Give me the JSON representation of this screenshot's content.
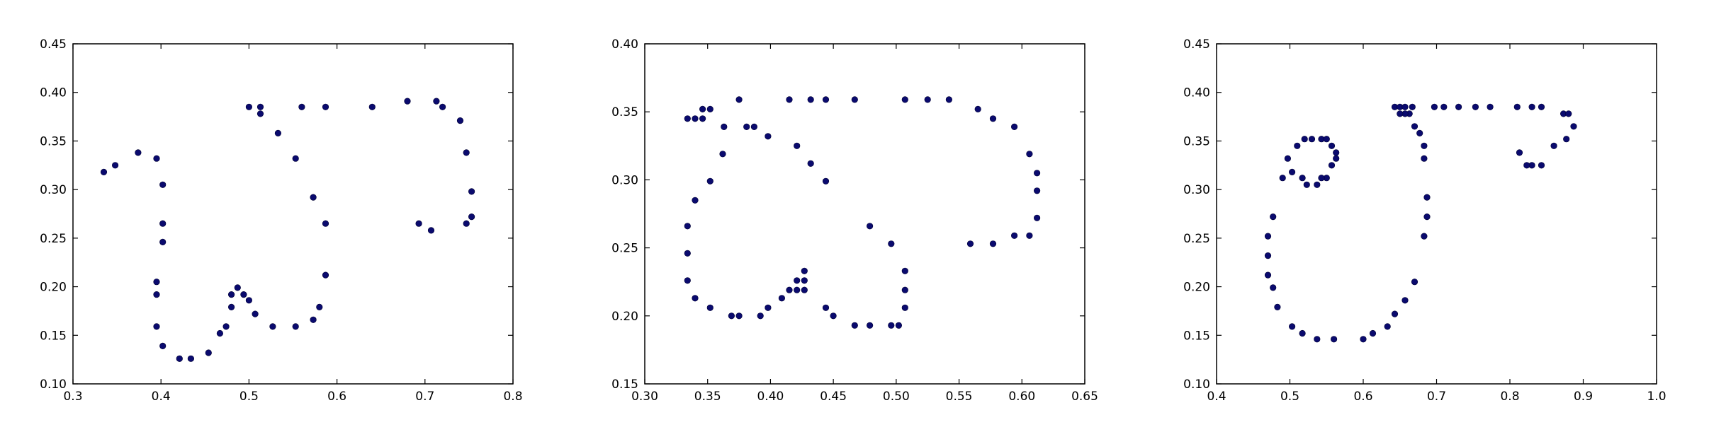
{
  "chart_data": [
    {
      "type": "scatter",
      "xlim": [
        0.3,
        0.8
      ],
      "ylim": [
        0.1,
        0.45
      ],
      "xticks": [
        "0.3",
        "0.4",
        "0.5",
        "0.6",
        "0.7",
        "0.8"
      ],
      "yticks": [
        "0.10",
        "0.15",
        "0.20",
        "0.25",
        "0.30",
        "0.35",
        "0.40",
        "0.45"
      ],
      "color": "#0a0a6e",
      "points": [
        [
          0.335,
          0.318
        ],
        [
          0.348,
          0.325
        ],
        [
          0.374,
          0.338
        ],
        [
          0.395,
          0.332
        ],
        [
          0.402,
          0.305
        ],
        [
          0.402,
          0.265
        ],
        [
          0.402,
          0.246
        ],
        [
          0.395,
          0.205
        ],
        [
          0.395,
          0.192
        ],
        [
          0.395,
          0.159
        ],
        [
          0.402,
          0.139
        ],
        [
          0.421,
          0.126
        ],
        [
          0.434,
          0.126
        ],
        [
          0.454,
          0.132
        ],
        [
          0.467,
          0.152
        ],
        [
          0.474,
          0.159
        ],
        [
          0.48,
          0.179
        ],
        [
          0.48,
          0.192
        ],
        [
          0.487,
          0.199
        ],
        [
          0.494,
          0.192
        ],
        [
          0.5,
          0.186
        ],
        [
          0.507,
          0.172
        ],
        [
          0.527,
          0.159
        ],
        [
          0.553,
          0.159
        ],
        [
          0.573,
          0.166
        ],
        [
          0.58,
          0.179
        ],
        [
          0.587,
          0.212
        ],
        [
          0.587,
          0.265
        ],
        [
          0.573,
          0.292
        ],
        [
          0.553,
          0.332
        ],
        [
          0.533,
          0.358
        ],
        [
          0.513,
          0.378
        ],
        [
          0.513,
          0.385
        ],
        [
          0.5,
          0.385
        ],
        [
          0.56,
          0.385
        ],
        [
          0.587,
          0.385
        ],
        [
          0.64,
          0.385
        ],
        [
          0.68,
          0.391
        ],
        [
          0.713,
          0.391
        ],
        [
          0.72,
          0.385
        ],
        [
          0.74,
          0.371
        ],
        [
          0.747,
          0.338
        ],
        [
          0.753,
          0.298
        ],
        [
          0.753,
          0.272
        ],
        [
          0.747,
          0.265
        ],
        [
          0.707,
          0.258
        ],
        [
          0.693,
          0.265
        ]
      ]
    },
    {
      "type": "scatter",
      "xlim": [
        0.3,
        0.65
      ],
      "ylim": [
        0.15,
        0.4
      ],
      "xticks": [
        "0.30",
        "0.35",
        "0.40",
        "0.45",
        "0.50",
        "0.55",
        "0.60",
        "0.65"
      ],
      "yticks": [
        "0.15",
        "0.20",
        "0.25",
        "0.30",
        "0.35",
        "0.40"
      ],
      "color": "#0a0a6e",
      "points": [
        [
          0.334,
          0.345
        ],
        [
          0.34,
          0.345
        ],
        [
          0.346,
          0.345
        ],
        [
          0.346,
          0.352
        ],
        [
          0.352,
          0.352
        ],
        [
          0.363,
          0.339
        ],
        [
          0.375,
          0.359
        ],
        [
          0.381,
          0.339
        ],
        [
          0.387,
          0.339
        ],
        [
          0.398,
          0.332
        ],
        [
          0.362,
          0.319
        ],
        [
          0.352,
          0.299
        ],
        [
          0.34,
          0.285
        ],
        [
          0.334,
          0.266
        ],
        [
          0.334,
          0.246
        ],
        [
          0.334,
          0.226
        ],
        [
          0.34,
          0.213
        ],
        [
          0.352,
          0.206
        ],
        [
          0.369,
          0.2
        ],
        [
          0.375,
          0.2
        ],
        [
          0.392,
          0.2
        ],
        [
          0.398,
          0.206
        ],
        [
          0.409,
          0.213
        ],
        [
          0.415,
          0.219
        ],
        [
          0.421,
          0.219
        ],
        [
          0.421,
          0.226
        ],
        [
          0.427,
          0.226
        ],
        [
          0.427,
          0.233
        ],
        [
          0.427,
          0.219
        ],
        [
          0.444,
          0.206
        ],
        [
          0.45,
          0.2
        ],
        [
          0.467,
          0.193
        ],
        [
          0.479,
          0.193
        ],
        [
          0.496,
          0.193
        ],
        [
          0.502,
          0.193
        ],
        [
          0.507,
          0.206
        ],
        [
          0.507,
          0.219
        ],
        [
          0.507,
          0.233
        ],
        [
          0.496,
          0.253
        ],
        [
          0.479,
          0.266
        ],
        [
          0.444,
          0.299
        ],
        [
          0.432,
          0.312
        ],
        [
          0.421,
          0.325
        ],
        [
          0.415,
          0.359
        ],
        [
          0.432,
          0.359
        ],
        [
          0.444,
          0.359
        ],
        [
          0.467,
          0.359
        ],
        [
          0.507,
          0.359
        ],
        [
          0.525,
          0.359
        ],
        [
          0.542,
          0.359
        ],
        [
          0.565,
          0.352
        ],
        [
          0.577,
          0.345
        ],
        [
          0.594,
          0.339
        ],
        [
          0.606,
          0.319
        ],
        [
          0.612,
          0.305
        ],
        [
          0.612,
          0.292
        ],
        [
          0.612,
          0.272
        ],
        [
          0.606,
          0.259
        ],
        [
          0.594,
          0.259
        ],
        [
          0.577,
          0.253
        ],
        [
          0.559,
          0.253
        ]
      ]
    },
    {
      "type": "scatter",
      "xlim": [
        0.4,
        1.0
      ],
      "ylim": [
        0.1,
        0.45
      ],
      "xticks": [
        "0.4",
        "0.5",
        "0.6",
        "0.7",
        "0.8",
        "0.9",
        "1.0"
      ],
      "yticks": [
        "0.10",
        "0.15",
        "0.20",
        "0.25",
        "0.30",
        "0.35",
        "0.40",
        "0.45"
      ],
      "color": "#0a0a6e",
      "points": [
        [
          0.53,
          0.352
        ],
        [
          0.543,
          0.352
        ],
        [
          0.55,
          0.352
        ],
        [
          0.557,
          0.345
        ],
        [
          0.563,
          0.338
        ],
        [
          0.563,
          0.332
        ],
        [
          0.557,
          0.325
        ],
        [
          0.55,
          0.312
        ],
        [
          0.543,
          0.312
        ],
        [
          0.537,
          0.305
        ],
        [
          0.523,
          0.305
        ],
        [
          0.517,
          0.312
        ],
        [
          0.503,
          0.318
        ],
        [
          0.49,
          0.312
        ],
        [
          0.497,
          0.332
        ],
        [
          0.51,
          0.345
        ],
        [
          0.52,
          0.352
        ],
        [
          0.477,
          0.272
        ],
        [
          0.47,
          0.252
        ],
        [
          0.47,
          0.232
        ],
        [
          0.47,
          0.212
        ],
        [
          0.477,
          0.199
        ],
        [
          0.483,
          0.179
        ],
        [
          0.503,
          0.159
        ],
        [
          0.517,
          0.152
        ],
        [
          0.537,
          0.146
        ],
        [
          0.56,
          0.146
        ],
        [
          0.6,
          0.146
        ],
        [
          0.613,
          0.152
        ],
        [
          0.633,
          0.159
        ],
        [
          0.643,
          0.172
        ],
        [
          0.657,
          0.186
        ],
        [
          0.67,
          0.205
        ],
        [
          0.683,
          0.252
        ],
        [
          0.687,
          0.272
        ],
        [
          0.687,
          0.292
        ],
        [
          0.683,
          0.332
        ],
        [
          0.683,
          0.345
        ],
        [
          0.677,
          0.358
        ],
        [
          0.67,
          0.365
        ],
        [
          0.663,
          0.378
        ],
        [
          0.657,
          0.378
        ],
        [
          0.65,
          0.378
        ],
        [
          0.643,
          0.385
        ],
        [
          0.65,
          0.385
        ],
        [
          0.657,
          0.385
        ],
        [
          0.667,
          0.385
        ],
        [
          0.697,
          0.385
        ],
        [
          0.71,
          0.385
        ],
        [
          0.73,
          0.385
        ],
        [
          0.753,
          0.385
        ],
        [
          0.773,
          0.385
        ],
        [
          0.81,
          0.385
        ],
        [
          0.83,
          0.385
        ],
        [
          0.843,
          0.385
        ],
        [
          0.873,
          0.378
        ],
        [
          0.88,
          0.378
        ],
        [
          0.887,
          0.365
        ],
        [
          0.877,
          0.352
        ],
        [
          0.86,
          0.345
        ],
        [
          0.843,
          0.325
        ],
        [
          0.83,
          0.325
        ],
        [
          0.823,
          0.325
        ],
        [
          0.813,
          0.338
        ]
      ]
    }
  ]
}
